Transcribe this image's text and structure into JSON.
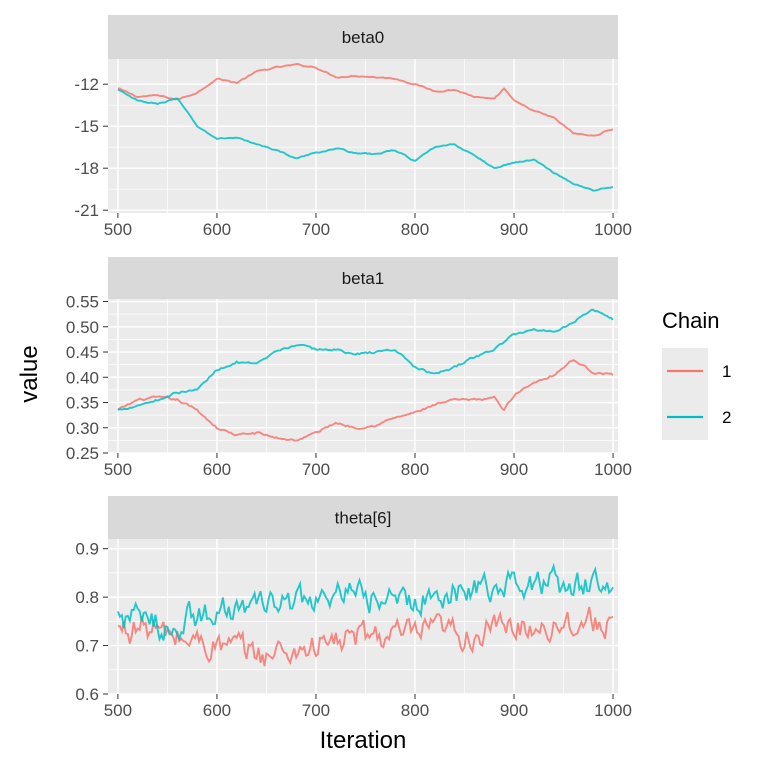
{
  "chart_data": {
    "type": "line",
    "xlabel": "Iteration",
    "ylabel": "value",
    "legend": {
      "title": "Chain",
      "position": "right",
      "entries": [
        {
          "label": "1",
          "color": "#F8766D"
        },
        {
          "label": "2",
          "color": "#00BFC4"
        }
      ]
    },
    "grid": true,
    "x_ticks": [
      "500",
      "600",
      "700",
      "800",
      "900",
      "1000"
    ],
    "xlim": [
      490,
      1005
    ],
    "colors": {
      "panel_bg": "#EBEBEB",
      "strip_bg": "#D9D9D9",
      "chain1": "#F8766D",
      "chain2": "#00BFC4"
    },
    "panels": [
      {
        "title": "beta0",
        "ylim": [
          -21.2,
          -10.2
        ],
        "y_ticks": [
          -12,
          -15,
          -18,
          -21
        ],
        "y_tick_labels": [
          "-12",
          "-15",
          "-18",
          "-21"
        ],
        "volatility": 0.08,
        "series": [
          {
            "name": "1",
            "x": [
              500,
              520,
              540,
              560,
              580,
              600,
              620,
              640,
              660,
              680,
              700,
              720,
              740,
              760,
              780,
              800,
              820,
              840,
              860,
              880,
              890,
              900,
              920,
              940,
              960,
              980,
              1000
            ],
            "y": [
              -12.3,
              -12.9,
              -12.8,
              -13.1,
              -12.6,
              -11.6,
              -11.9,
              -11.1,
              -10.8,
              -10.6,
              -10.8,
              -11.5,
              -11.4,
              -11.5,
              -11.6,
              -12.0,
              -12.5,
              -12.4,
              -12.9,
              -13.1,
              -12.3,
              -13.2,
              -13.9,
              -14.4,
              -15.5,
              -15.7,
              -15.2
            ]
          },
          {
            "name": "2",
            "x": [
              500,
              520,
              540,
              560,
              580,
              600,
              620,
              640,
              660,
              680,
              700,
              720,
              740,
              760,
              780,
              800,
              820,
              840,
              860,
              880,
              900,
              920,
              940,
              960,
              980,
              1000
            ],
            "y": [
              -12.4,
              -13.2,
              -13.4,
              -13.0,
              -15.0,
              -15.9,
              -15.8,
              -16.3,
              -16.7,
              -17.3,
              -16.9,
              -16.6,
              -16.9,
              -17.0,
              -16.7,
              -17.5,
              -16.5,
              -16.3,
              -17.1,
              -18.0,
              -17.6,
              -17.4,
              -18.3,
              -19.1,
              -19.6,
              -19.3
            ]
          }
        ]
      },
      {
        "title": "beta1",
        "ylim": [
          0.25,
          0.555
        ],
        "y_ticks": [
          0.25,
          0.3,
          0.35,
          0.4,
          0.45,
          0.5,
          0.55
        ],
        "y_tick_labels": [
          "0.25",
          "0.30",
          "0.35",
          "0.40",
          "0.45",
          "0.50",
          "0.55"
        ],
        "volatility": 0.004,
        "series": [
          {
            "name": "1",
            "x": [
              500,
              520,
              540,
              560,
              580,
              600,
              620,
              640,
              660,
              680,
              700,
              720,
              740,
              760,
              780,
              800,
              820,
              840,
              860,
              880,
              890,
              900,
              920,
              940,
              960,
              980,
              1000
            ],
            "y": [
              0.335,
              0.355,
              0.36,
              0.355,
              0.335,
              0.3,
              0.285,
              0.29,
              0.28,
              0.275,
              0.29,
              0.31,
              0.3,
              0.305,
              0.32,
              0.33,
              0.345,
              0.355,
              0.355,
              0.36,
              0.335,
              0.365,
              0.39,
              0.405,
              0.435,
              0.41,
              0.405
            ]
          },
          {
            "name": "2",
            "x": [
              500,
              520,
              540,
              560,
              580,
              600,
              620,
              640,
              660,
              680,
              700,
              720,
              740,
              760,
              780,
              800,
              820,
              840,
              860,
              880,
              900,
              920,
              940,
              960,
              980,
              1000
            ],
            "y": [
              0.335,
              0.345,
              0.355,
              0.37,
              0.375,
              0.415,
              0.43,
              0.425,
              0.45,
              0.465,
              0.455,
              0.455,
              0.445,
              0.45,
              0.455,
              0.42,
              0.405,
              0.42,
              0.44,
              0.455,
              0.485,
              0.495,
              0.49,
              0.51,
              0.535,
              0.515
            ]
          }
        ]
      },
      {
        "title": "theta[6]",
        "ylim": [
          0.6,
          0.92
        ],
        "y_ticks": [
          0.6,
          0.7,
          0.8,
          0.9
        ],
        "y_tick_labels": [
          "0.6",
          "0.7",
          "0.8",
          "0.9"
        ],
        "volatility": 0.05,
        "series": [
          {
            "name": "1",
            "x": [
              500,
              525,
              550,
              575,
              600,
              625,
              650,
              675,
              700,
              725,
              750,
              775,
              800,
              825,
              850,
              875,
              900,
              925,
              950,
              975,
              1000
            ],
            "y": [
              0.73,
              0.74,
              0.72,
              0.71,
              0.7,
              0.69,
              0.68,
              0.69,
              0.7,
              0.71,
              0.72,
              0.72,
              0.72,
              0.73,
              0.72,
              0.73,
              0.74,
              0.74,
              0.75,
              0.75,
              0.75
            ]
          },
          {
            "name": "2",
            "x": [
              500,
              525,
              550,
              575,
              600,
              625,
              650,
              675,
              700,
              725,
              750,
              775,
              800,
              825,
              850,
              875,
              900,
              925,
              950,
              975,
              1000
            ],
            "y": [
              0.76,
              0.75,
              0.74,
              0.76,
              0.77,
              0.78,
              0.78,
              0.79,
              0.79,
              0.8,
              0.8,
              0.79,
              0.79,
              0.81,
              0.82,
              0.82,
              0.83,
              0.83,
              0.82,
              0.83,
              0.81
            ]
          }
        ]
      }
    ]
  }
}
